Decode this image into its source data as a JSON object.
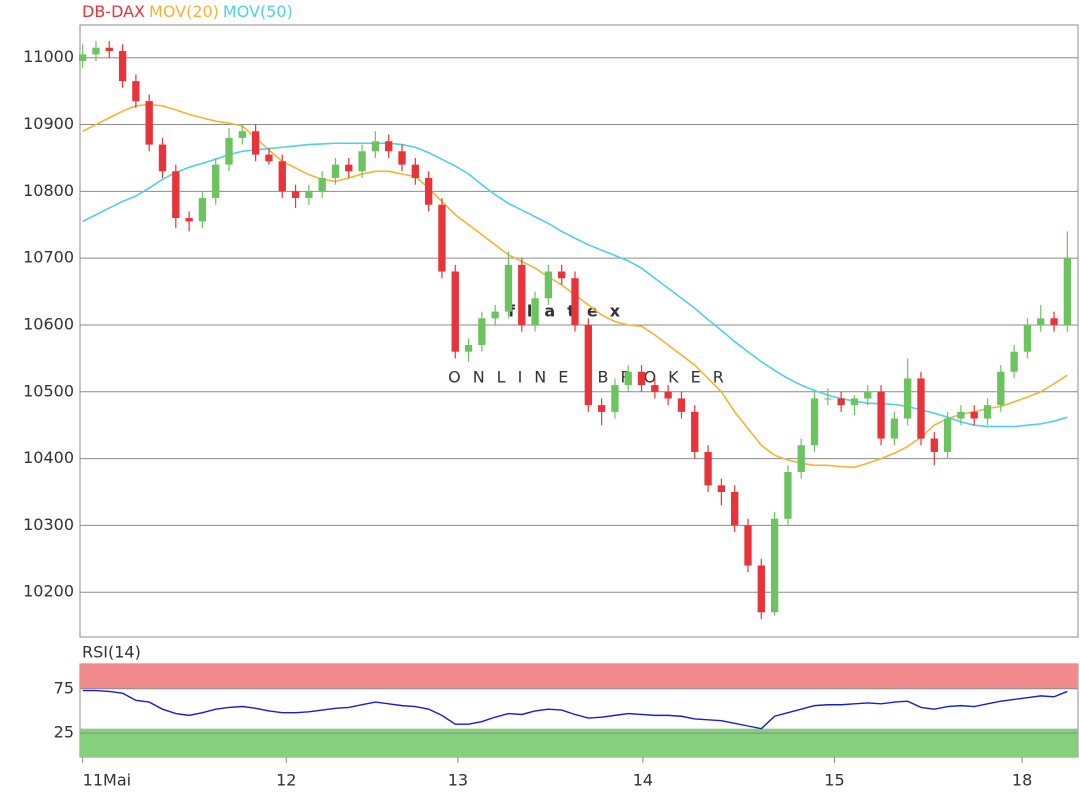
{
  "chart_data": [
    {
      "type": "candlestick",
      "name": "DB-DAX",
      "legend": "top-left",
      "up_color": "#6cc35f",
      "down_color": "#e8333a",
      "x": [
        0,
        1,
        2,
        3,
        4,
        5,
        6,
        7,
        8,
        9,
        10,
        11,
        12,
        13,
        14,
        15,
        16,
        17,
        18,
        19,
        20,
        21,
        22,
        23,
        24,
        25,
        26,
        27,
        28,
        29,
        30,
        31,
        32,
        33,
        34,
        35,
        36,
        37,
        38,
        39,
        40,
        41,
        42,
        43,
        44,
        45,
        46,
        47,
        48,
        49,
        50,
        51,
        52,
        53,
        54,
        55,
        56,
        57,
        58,
        59,
        60,
        61,
        62,
        63,
        64,
        65,
        66,
        67,
        68,
        69,
        70,
        71,
        72,
        73,
        74
      ],
      "open": [
        10995,
        11005,
        11015,
        11010,
        10965,
        10935,
        10870,
        10830,
        10760,
        10755,
        10790,
        10840,
        10880,
        10890,
        10855,
        10845,
        10800,
        10790,
        10800,
        10820,
        10840,
        10830,
        10860,
        10875,
        10860,
        10840,
        10820,
        10780,
        10680,
        10560,
        10570,
        10610,
        10620,
        10690,
        10600,
        10640,
        10680,
        10670,
        10600,
        10480,
        10470,
        10510,
        10530,
        10510,
        10500,
        10490,
        10470,
        10410,
        10360,
        10350,
        10300,
        10240,
        10170,
        10310,
        10380,
        10420,
        10490,
        10490,
        10480,
        10490,
        10500,
        10430,
        10460,
        10520,
        10430,
        10410,
        10460,
        10470,
        10460,
        10480,
        10530,
        10560,
        10600,
        10610,
        10600
      ],
      "high": [
        11020,
        11025,
        11025,
        11020,
        10975,
        10945,
        10880,
        10840,
        10770,
        10800,
        10850,
        10895,
        10900,
        10900,
        10865,
        10855,
        10810,
        10810,
        10830,
        10850,
        10850,
        10870,
        10890,
        10885,
        10870,
        10850,
        10830,
        10790,
        10690,
        10580,
        10620,
        10630,
        10710,
        10700,
        10650,
        10690,
        10690,
        10680,
        10610,
        10490,
        10520,
        10540,
        10540,
        10520,
        10510,
        10500,
        10480,
        10420,
        10370,
        10360,
        10310,
        10250,
        10320,
        10390,
        10430,
        10500,
        10505,
        10500,
        10495,
        10510,
        10510,
        10470,
        10550,
        10530,
        10440,
        10470,
        10480,
        10480,
        10490,
        10540,
        10570,
        10610,
        10630,
        10620,
        10740
      ],
      "low": [
        10985,
        10995,
        11000,
        10955,
        10925,
        10860,
        10820,
        10745,
        10740,
        10745,
        10780,
        10830,
        10870,
        10845,
        10840,
        10790,
        10775,
        10780,
        10790,
        10810,
        10820,
        10820,
        10850,
        10850,
        10830,
        10810,
        10770,
        10670,
        10550,
        10545,
        10560,
        10600,
        10610,
        10590,
        10590,
        10630,
        10660,
        10590,
        10470,
        10450,
        10460,
        10500,
        10500,
        10490,
        10480,
        10460,
        10400,
        10350,
        10330,
        10290,
        10230,
        10160,
        10165,
        10300,
        10370,
        10410,
        10480,
        10470,
        10465,
        10480,
        10420,
        10420,
        10450,
        10420,
        10390,
        10400,
        10450,
        10450,
        10450,
        10470,
        10520,
        10550,
        10590,
        10590,
        10590
      ],
      "close": [
        11005,
        11015,
        11010,
        10965,
        10935,
        10870,
        10830,
        10760,
        10755,
        10790,
        10840,
        10880,
        10890,
        10855,
        10845,
        10800,
        10790,
        10800,
        10820,
        10840,
        10830,
        10860,
        10875,
        10860,
        10840,
        10820,
        10780,
        10680,
        10560,
        10570,
        10610,
        10620,
        10690,
        10600,
        10640,
        10680,
        10670,
        10600,
        10480,
        10470,
        10510,
        10530,
        10510,
        10500,
        10490,
        10470,
        10410,
        10360,
        10350,
        10300,
        10240,
        10170,
        10310,
        10380,
        10420,
        10490,
        10490,
        10480,
        10490,
        10500,
        10430,
        10460,
        10520,
        10430,
        10410,
        10460,
        10470,
        10460,
        10480,
        10530,
        10560,
        10600,
        10610,
        10600,
        10700
      ],
      "overlays": [
        {
          "name": "MOV(20)",
          "color": "#f5b335",
          "values": [
            10890,
            10900,
            10910,
            10920,
            10928,
            10930,
            10928,
            10922,
            10915,
            10910,
            10905,
            10902,
            10898,
            10880,
            10862,
            10845,
            10835,
            10825,
            10818,
            10815,
            10820,
            10826,
            10830,
            10830,
            10826,
            10822,
            10805,
            10785,
            10765,
            10750,
            10735,
            10720,
            10705,
            10695,
            10685,
            10672,
            10660,
            10645,
            10630,
            10615,
            10605,
            10600,
            10598,
            10585,
            10570,
            10555,
            10540,
            10520,
            10500,
            10470,
            10445,
            10420,
            10405,
            10398,
            10393,
            10390,
            10390,
            10388,
            10387,
            10393,
            10400,
            10408,
            10418,
            10432,
            10450,
            10460,
            10466,
            10470,
            10475,
            10478,
            10485,
            10492,
            10500,
            10512,
            10525
          ]
        },
        {
          "name": "MOV(50)",
          "color": "#4fd0e8",
          "values": [
            10755,
            10765,
            10775,
            10785,
            10793,
            10805,
            10818,
            10828,
            10836,
            10842,
            10848,
            10855,
            10860,
            10862,
            10864,
            10866,
            10868,
            10870,
            10871,
            10872,
            10872,
            10872,
            10872,
            10872,
            10870,
            10866,
            10858,
            10848,
            10838,
            10826,
            10810,
            10795,
            10782,
            10772,
            10762,
            10752,
            10740,
            10730,
            10720,
            10712,
            10704,
            10696,
            10685,
            10670,
            10655,
            10640,
            10625,
            10608,
            10592,
            10575,
            10560,
            10545,
            10532,
            10520,
            10510,
            10502,
            10495,
            10490,
            10486,
            10483,
            10482,
            10481,
            10478,
            10473,
            10468,
            10462,
            10455,
            10450,
            10448,
            10448,
            10448,
            10450,
            10452,
            10456,
            10462
          ]
        }
      ],
      "xlim": [
        -0.2,
        74.8
      ],
      "ylim": [
        10133,
        11049
      ],
      "yticks": [
        10200,
        10300,
        10400,
        10500,
        10600,
        10700,
        10800,
        10900,
        11000
      ],
      "grid": true,
      "watermark": [
        "flatex",
        "ONLINE BROKER"
      ]
    },
    {
      "type": "line",
      "legend": "top-left",
      "x": [
        0,
        1,
        2,
        3,
        4,
        5,
        6,
        7,
        8,
        9,
        10,
        11,
        12,
        13,
        14,
        15,
        16,
        17,
        18,
        19,
        20,
        21,
        22,
        23,
        24,
        25,
        26,
        27,
        28,
        29,
        30,
        31,
        32,
        33,
        34,
        35,
        36,
        37,
        38,
        39,
        40,
        41,
        42,
        43,
        44,
        45,
        46,
        47,
        48,
        49,
        50,
        51,
        52,
        53,
        54,
        55,
        56,
        57,
        58,
        59,
        60,
        61,
        62,
        63,
        64,
        65,
        66,
        67,
        68,
        69,
        70,
        71,
        72,
        73,
        74
      ],
      "series": [
        {
          "name": "RSI(14)",
          "color": "#1a1adf",
          "values": [
            73,
            73,
            72,
            70,
            62,
            60,
            52,
            47,
            45,
            48,
            52,
            54,
            55,
            53,
            50,
            48,
            48,
            49,
            51,
            53,
            54,
            57,
            60,
            58,
            56,
            55,
            52,
            45,
            35,
            35,
            38,
            43,
            47,
            46,
            50,
            52,
            51,
            46,
            42,
            43,
            45,
            47,
            46,
            45,
            45,
            44,
            41,
            40,
            39,
            36,
            33,
            30,
            44,
            48,
            52,
            56,
            57,
            57,
            58,
            59,
            58,
            60,
            61,
            54,
            52,
            55,
            56,
            55,
            58,
            61,
            63,
            65,
            67,
            66,
            72
          ]
        }
      ],
      "upper_band": 75,
      "upper_color": "#f28b8b",
      "lower_band": 30,
      "lower_color": "#86d07d",
      "xlim": [
        -0.2,
        74.8
      ],
      "ylim": [
        -2,
        103
      ],
      "yticks": [
        25,
        75
      ],
      "grid": true,
      "xticks": [
        {
          "value": 0,
          "label": "11Mai"
        },
        {
          "value": 15.3,
          "label": "12"
        },
        {
          "value": 28.2,
          "label": "13"
        },
        {
          "value": 42.1,
          "label": "14"
        },
        {
          "value": 56.5,
          "label": "15"
        },
        {
          "value": 70.6,
          "label": "18"
        }
      ]
    }
  ]
}
